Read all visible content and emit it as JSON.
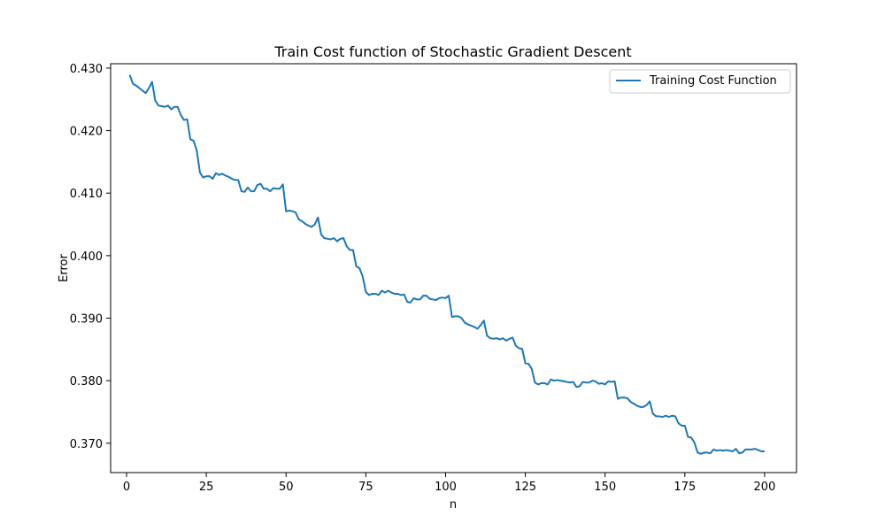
{
  "chart_data": {
    "type": "line",
    "title": "Train Cost function of Stochastic Gradient Descent",
    "xlabel": "n",
    "ylabel": "Error",
    "xlim": [
      -5,
      210
    ],
    "ylim": [
      0.3653,
      0.4307
    ],
    "xticks": [
      0,
      25,
      50,
      75,
      100,
      125,
      150,
      175,
      200
    ],
    "yticks": [
      0.37,
      0.38,
      0.39,
      0.4,
      0.41,
      0.42,
      0.43
    ],
    "ytick_labels": [
      "0.370",
      "0.380",
      "0.390",
      "0.400",
      "0.410",
      "0.420",
      "0.430"
    ],
    "grid": false,
    "legend_position": "top-right",
    "color": "#1f77b4",
    "series": [
      {
        "name": "Training Cost Function",
        "keypoints": [
          [
            1,
            0.4289
          ],
          [
            2,
            0.4275
          ],
          [
            3,
            0.4272
          ],
          [
            4,
            0.4268
          ],
          [
            5,
            0.4264
          ],
          [
            6,
            0.426
          ],
          [
            7,
            0.4268
          ],
          [
            8,
            0.4278
          ],
          [
            9,
            0.4248
          ],
          [
            10,
            0.424
          ],
          [
            11,
            0.4239
          ],
          [
            12,
            0.4238
          ],
          [
            13,
            0.424
          ],
          [
            14,
            0.4234
          ],
          [
            15,
            0.4238
          ],
          [
            16,
            0.4238
          ],
          [
            17,
            0.4225
          ],
          [
            18,
            0.4217
          ],
          [
            19,
            0.4218
          ],
          [
            20,
            0.4186
          ],
          [
            21,
            0.4184
          ],
          [
            22,
            0.4168
          ],
          [
            23,
            0.4133
          ],
          [
            24,
            0.4125
          ],
          [
            25,
            0.4127
          ],
          [
            26,
            0.4127
          ],
          [
            27,
            0.4123
          ],
          [
            28,
            0.4132
          ],
          [
            29,
            0.4129
          ],
          [
            30,
            0.4131
          ],
          [
            31,
            0.4128
          ],
          [
            32,
            0.4126
          ],
          [
            33,
            0.4123
          ],
          [
            34,
            0.4121
          ],
          [
            35,
            0.4121
          ],
          [
            36,
            0.4103
          ],
          [
            37,
            0.4102
          ],
          [
            38,
            0.4109
          ],
          [
            39,
            0.4103
          ],
          [
            40,
            0.4103
          ],
          [
            41,
            0.4113
          ],
          [
            42,
            0.4115
          ],
          [
            43,
            0.4107
          ],
          [
            44,
            0.4107
          ],
          [
            45,
            0.4103
          ],
          [
            46,
            0.4108
          ],
          [
            47,
            0.4107
          ],
          [
            48,
            0.4107
          ],
          [
            49,
            0.4114
          ],
          [
            50,
            0.4071
          ],
          [
            51,
            0.4072
          ],
          [
            52,
            0.4071
          ],
          [
            53,
            0.4069
          ],
          [
            54,
            0.4058
          ],
          [
            55,
            0.4055
          ],
          [
            56,
            0.4051
          ],
          [
            57,
            0.4048
          ],
          [
            58,
            0.4046
          ],
          [
            59,
            0.405
          ],
          [
            60,
            0.4061
          ],
          [
            61,
            0.4034
          ],
          [
            62,
            0.4028
          ],
          [
            63,
            0.4027
          ],
          [
            64,
            0.4026
          ],
          [
            65,
            0.4028
          ],
          [
            66,
            0.4023
          ],
          [
            67,
            0.4027
          ],
          [
            68,
            0.4028
          ],
          [
            69,
            0.4015
          ],
          [
            70,
            0.4009
          ],
          [
            71,
            0.4009
          ],
          [
            72,
            0.3983
          ],
          [
            73,
            0.398
          ],
          [
            74,
            0.3967
          ],
          [
            75,
            0.3942
          ],
          [
            76,
            0.3937
          ],
          [
            77,
            0.3939
          ],
          [
            78,
            0.3939
          ],
          [
            79,
            0.3937
          ],
          [
            80,
            0.3944
          ],
          [
            81,
            0.3941
          ],
          [
            82,
            0.3944
          ],
          [
            83,
            0.3941
          ],
          [
            84,
            0.3939
          ],
          [
            85,
            0.3939
          ],
          [
            86,
            0.3937
          ],
          [
            87,
            0.3938
          ],
          [
            88,
            0.3926
          ],
          [
            89,
            0.3925
          ],
          [
            90,
            0.3932
          ],
          [
            91,
            0.393
          ],
          [
            92,
            0.393
          ],
          [
            93,
            0.3936
          ],
          [
            94,
            0.3936
          ],
          [
            95,
            0.3931
          ],
          [
            96,
            0.393
          ],
          [
            97,
            0.3929
          ],
          [
            98,
            0.3932
          ],
          [
            99,
            0.3933
          ],
          [
            100,
            0.3932
          ],
          [
            101,
            0.3936
          ],
          [
            102,
            0.3902
          ],
          [
            103,
            0.3903
          ],
          [
            104,
            0.3903
          ],
          [
            105,
            0.39
          ],
          [
            106,
            0.3893
          ],
          [
            107,
            0.389
          ],
          [
            108,
            0.3888
          ],
          [
            109,
            0.3886
          ],
          [
            110,
            0.3883
          ],
          [
            111,
            0.3889
          ],
          [
            112,
            0.3896
          ],
          [
            113,
            0.3872
          ],
          [
            114,
            0.3868
          ],
          [
            115,
            0.3867
          ],
          [
            116,
            0.3868
          ],
          [
            117,
            0.3866
          ],
          [
            118,
            0.3868
          ],
          [
            119,
            0.3864
          ],
          [
            120,
            0.3867
          ],
          [
            121,
            0.3869
          ],
          [
            122,
            0.3856
          ],
          [
            123,
            0.3852
          ],
          [
            124,
            0.3851
          ],
          [
            125,
            0.3828
          ],
          [
            126,
            0.3827
          ],
          [
            127,
            0.3819
          ],
          [
            128,
            0.3797
          ],
          [
            129,
            0.3794
          ],
          [
            130,
            0.3796
          ],
          [
            131,
            0.3796
          ],
          [
            132,
            0.3794
          ],
          [
            133,
            0.3802
          ],
          [
            134,
            0.38
          ],
          [
            135,
            0.3801
          ],
          [
            136,
            0.38
          ],
          [
            137,
            0.3799
          ],
          [
            138,
            0.3798
          ],
          [
            139,
            0.3797
          ],
          [
            140,
            0.3798
          ],
          [
            141,
            0.379
          ],
          [
            142,
            0.3791
          ],
          [
            143,
            0.3798
          ],
          [
            144,
            0.3797
          ],
          [
            145,
            0.3797
          ],
          [
            146,
            0.38
          ],
          [
            147,
            0.3799
          ],
          [
            148,
            0.3795
          ],
          [
            149,
            0.3796
          ],
          [
            150,
            0.3794
          ],
          [
            151,
            0.3799
          ],
          [
            152,
            0.3798
          ],
          [
            153,
            0.3799
          ],
          [
            154,
            0.3771
          ],
          [
            155,
            0.3773
          ],
          [
            156,
            0.3773
          ],
          [
            157,
            0.3772
          ],
          [
            158,
            0.3766
          ],
          [
            159,
            0.3763
          ],
          [
            160,
            0.376
          ],
          [
            161,
            0.3758
          ],
          [
            162,
            0.3758
          ],
          [
            163,
            0.3761
          ],
          [
            164,
            0.3767
          ],
          [
            165,
            0.3747
          ],
          [
            166,
            0.3743
          ],
          [
            167,
            0.3743
          ],
          [
            168,
            0.3742
          ],
          [
            169,
            0.3744
          ],
          [
            170,
            0.3742
          ],
          [
            171,
            0.3744
          ],
          [
            172,
            0.3743
          ],
          [
            173,
            0.3732
          ],
          [
            174,
            0.3728
          ],
          [
            175,
            0.3728
          ],
          [
            176,
            0.371
          ],
          [
            177,
            0.3709
          ],
          [
            178,
            0.3701
          ],
          [
            179,
            0.3685
          ],
          [
            180,
            0.3683
          ],
          [
            181,
            0.3685
          ],
          [
            182,
            0.3685
          ],
          [
            183,
            0.3684
          ],
          [
            184,
            0.369
          ],
          [
            185,
            0.3688
          ],
          [
            186,
            0.3689
          ],
          [
            187,
            0.3688
          ],
          [
            188,
            0.3689
          ],
          [
            189,
            0.3688
          ],
          [
            190,
            0.3687
          ],
          [
            191,
            0.3691
          ],
          [
            192,
            0.3684
          ],
          [
            193,
            0.3685
          ],
          [
            194,
            0.369
          ],
          [
            195,
            0.369
          ],
          [
            196,
            0.369
          ],
          [
            197,
            0.3691
          ],
          [
            198,
            0.3689
          ],
          [
            199,
            0.3687
          ],
          [
            200,
            0.3687
          ]
        ]
      }
    ]
  }
}
